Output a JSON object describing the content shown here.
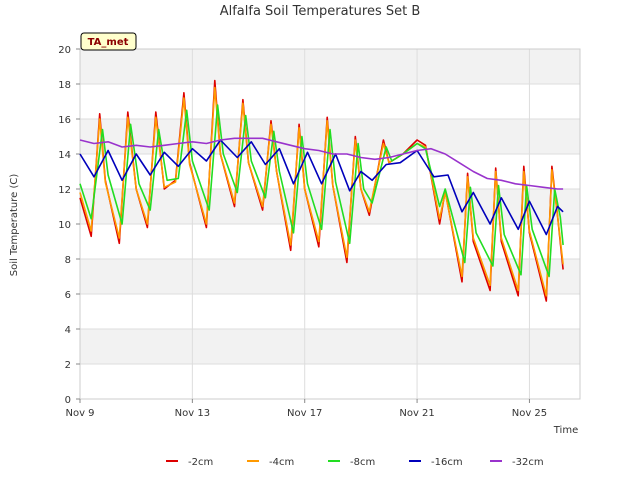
{
  "chart_data": {
    "type": "line",
    "title": "Alfalfa Soil Temperatures Set B",
    "xlabel": "Time",
    "ylabel": "Soil Temperature (C)",
    "badge": "TA_met",
    "xlim": [
      0,
      17.8
    ],
    "ylim": [
      0,
      20
    ],
    "yticks": [
      0,
      2,
      4,
      6,
      8,
      10,
      12,
      14,
      16,
      18,
      20
    ],
    "xticks": [
      {
        "x": 0,
        "label": "Nov 9"
      },
      {
        "x": 4,
        "label": "Nov 13"
      },
      {
        "x": 8,
        "label": "Nov 17"
      },
      {
        "x": 12,
        "label": "Nov 21"
      },
      {
        "x": 16,
        "label": "Nov 25"
      }
    ],
    "grid": true,
    "legend_position": "bottom",
    "series": [
      {
        "name": "-2cm",
        "color": "#dd0000",
        "points": [
          [
            0.0,
            11.5
          ],
          [
            0.4,
            9.3
          ],
          [
            0.7,
            16.3
          ],
          [
            0.9,
            12.5
          ],
          [
            1.4,
            8.9
          ],
          [
            1.7,
            16.4
          ],
          [
            2.0,
            12.0
          ],
          [
            2.4,
            9.8
          ],
          [
            2.7,
            16.4
          ],
          [
            3.0,
            12.0
          ],
          [
            3.4,
            12.5
          ],
          [
            3.7,
            17.5
          ],
          [
            3.9,
            13.5
          ],
          [
            4.5,
            9.8
          ],
          [
            4.8,
            18.2
          ],
          [
            5.0,
            14.0
          ],
          [
            5.5,
            11.0
          ],
          [
            5.8,
            17.1
          ],
          [
            6.0,
            13.5
          ],
          [
            6.5,
            10.8
          ],
          [
            6.8,
            15.9
          ],
          [
            7.0,
            13.0
          ],
          [
            7.5,
            8.5
          ],
          [
            7.8,
            15.7
          ],
          [
            8.0,
            12.0
          ],
          [
            8.5,
            8.7
          ],
          [
            8.8,
            16.1
          ],
          [
            9.0,
            12.2
          ],
          [
            9.5,
            7.8
          ],
          [
            9.8,
            15.0
          ],
          [
            10.0,
            12.0
          ],
          [
            10.3,
            10.5
          ],
          [
            10.8,
            14.8
          ],
          [
            11.0,
            13.5
          ],
          [
            11.5,
            14.0
          ],
          [
            12.0,
            14.8
          ],
          [
            12.3,
            14.5
          ],
          [
            12.8,
            10.0
          ],
          [
            13.0,
            11.9
          ],
          [
            13.6,
            6.7
          ],
          [
            13.8,
            12.9
          ],
          [
            14.0,
            9.0
          ],
          [
            14.6,
            6.2
          ],
          [
            14.8,
            13.2
          ],
          [
            15.0,
            9.0
          ],
          [
            15.6,
            5.9
          ],
          [
            15.8,
            13.3
          ],
          [
            16.0,
            9.5
          ],
          [
            16.6,
            5.6
          ],
          [
            16.8,
            13.3
          ],
          [
            17.0,
            10.5
          ],
          [
            17.2,
            7.4
          ]
        ]
      },
      {
        "name": "-4cm",
        "color": "#ff9900",
        "points": [
          [
            0.0,
            11.8
          ],
          [
            0.4,
            9.6
          ],
          [
            0.7,
            16.0
          ],
          [
            0.9,
            12.4
          ],
          [
            1.4,
            9.2
          ],
          [
            1.7,
            16.1
          ],
          [
            2.0,
            12.0
          ],
          [
            2.4,
            10.0
          ],
          [
            2.7,
            16.1
          ],
          [
            3.0,
            12.1
          ],
          [
            3.4,
            12.4
          ],
          [
            3.7,
            17.2
          ],
          [
            3.9,
            13.4
          ],
          [
            4.5,
            10.0
          ],
          [
            4.8,
            17.8
          ],
          [
            5.0,
            14.0
          ],
          [
            5.5,
            11.2
          ],
          [
            5.8,
            16.9
          ],
          [
            6.0,
            13.5
          ],
          [
            6.5,
            11.0
          ],
          [
            6.8,
            15.7
          ],
          [
            7.0,
            13.0
          ],
          [
            7.5,
            8.8
          ],
          [
            7.8,
            15.5
          ],
          [
            8.0,
            12.0
          ],
          [
            8.5,
            9.0
          ],
          [
            8.8,
            15.9
          ],
          [
            9.0,
            12.2
          ],
          [
            9.5,
            8.1
          ],
          [
            9.8,
            14.8
          ],
          [
            10.0,
            12.0
          ],
          [
            10.3,
            10.7
          ],
          [
            10.8,
            14.6
          ],
          [
            11.0,
            13.5
          ],
          [
            11.5,
            14.0
          ],
          [
            12.0,
            14.6
          ],
          [
            12.3,
            14.4
          ],
          [
            12.8,
            10.3
          ],
          [
            13.0,
            11.8
          ],
          [
            13.6,
            7.0
          ],
          [
            13.8,
            12.7
          ],
          [
            14.0,
            9.2
          ],
          [
            14.6,
            6.5
          ],
          [
            14.8,
            13.0
          ],
          [
            15.0,
            9.2
          ],
          [
            15.6,
            6.2
          ],
          [
            15.8,
            13.0
          ],
          [
            16.0,
            9.6
          ],
          [
            16.6,
            5.9
          ],
          [
            16.8,
            13.1
          ],
          [
            17.0,
            10.5
          ],
          [
            17.2,
            7.7
          ]
        ]
      },
      {
        "name": "-8cm",
        "color": "#22dd22",
        "points": [
          [
            0.0,
            12.3
          ],
          [
            0.4,
            10.3
          ],
          [
            0.8,
            15.4
          ],
          [
            1.0,
            12.8
          ],
          [
            1.5,
            10.0
          ],
          [
            1.8,
            15.7
          ],
          [
            2.1,
            12.3
          ],
          [
            2.5,
            10.8
          ],
          [
            2.8,
            15.4
          ],
          [
            3.1,
            12.5
          ],
          [
            3.5,
            12.6
          ],
          [
            3.8,
            16.5
          ],
          [
            4.0,
            13.6
          ],
          [
            4.6,
            10.8
          ],
          [
            4.9,
            16.8
          ],
          [
            5.1,
            14.0
          ],
          [
            5.6,
            11.8
          ],
          [
            5.9,
            16.2
          ],
          [
            6.1,
            13.6
          ],
          [
            6.6,
            11.5
          ],
          [
            6.9,
            15.3
          ],
          [
            7.1,
            13.0
          ],
          [
            7.6,
            9.5
          ],
          [
            7.9,
            15.0
          ],
          [
            8.1,
            12.3
          ],
          [
            8.6,
            9.7
          ],
          [
            8.9,
            15.4
          ],
          [
            9.1,
            12.4
          ],
          [
            9.6,
            8.9
          ],
          [
            9.9,
            14.6
          ],
          [
            10.1,
            12.0
          ],
          [
            10.4,
            11.2
          ],
          [
            10.9,
            14.4
          ],
          [
            11.1,
            13.6
          ],
          [
            11.5,
            14.0
          ],
          [
            12.0,
            14.6
          ],
          [
            12.3,
            14.3
          ],
          [
            12.8,
            11.0
          ],
          [
            13.0,
            12.0
          ],
          [
            13.7,
            7.8
          ],
          [
            13.9,
            12.1
          ],
          [
            14.1,
            9.5
          ],
          [
            14.7,
            7.6
          ],
          [
            14.9,
            12.2
          ],
          [
            15.1,
            9.4
          ],
          [
            15.7,
            7.1
          ],
          [
            15.9,
            12.2
          ],
          [
            16.1,
            9.7
          ],
          [
            16.7,
            7.0
          ],
          [
            16.9,
            12.0
          ],
          [
            17.1,
            10.4
          ],
          [
            17.2,
            8.8
          ]
        ]
      },
      {
        "name": "-16cm",
        "color": "#0000bb",
        "points": [
          [
            0.0,
            14.0
          ],
          [
            0.5,
            12.7
          ],
          [
            1.0,
            14.2
          ],
          [
            1.5,
            12.5
          ],
          [
            2.0,
            14.0
          ],
          [
            2.5,
            12.8
          ],
          [
            3.0,
            14.1
          ],
          [
            3.5,
            13.3
          ],
          [
            4.0,
            14.3
          ],
          [
            4.5,
            13.6
          ],
          [
            5.0,
            14.8
          ],
          [
            5.6,
            13.8
          ],
          [
            6.1,
            14.7
          ],
          [
            6.6,
            13.4
          ],
          [
            7.1,
            14.3
          ],
          [
            7.6,
            12.3
          ],
          [
            8.1,
            14.1
          ],
          [
            8.6,
            12.3
          ],
          [
            9.1,
            14.0
          ],
          [
            9.6,
            11.9
          ],
          [
            10.0,
            13.0
          ],
          [
            10.4,
            12.5
          ],
          [
            10.9,
            13.4
          ],
          [
            11.4,
            13.5
          ],
          [
            12.0,
            14.2
          ],
          [
            12.6,
            12.7
          ],
          [
            13.1,
            12.8
          ],
          [
            13.6,
            10.7
          ],
          [
            14.0,
            11.8
          ],
          [
            14.6,
            10.0
          ],
          [
            15.0,
            11.5
          ],
          [
            15.6,
            9.7
          ],
          [
            16.0,
            11.3
          ],
          [
            16.6,
            9.4
          ],
          [
            17.0,
            11.0
          ],
          [
            17.2,
            10.7
          ]
        ]
      },
      {
        "name": "-32cm",
        "color": "#9933cc",
        "points": [
          [
            0.0,
            14.8
          ],
          [
            0.5,
            14.6
          ],
          [
            1.0,
            14.7
          ],
          [
            1.5,
            14.4
          ],
          [
            2.0,
            14.5
          ],
          [
            2.5,
            14.4
          ],
          [
            3.0,
            14.5
          ],
          [
            3.5,
            14.6
          ],
          [
            4.0,
            14.7
          ],
          [
            4.5,
            14.6
          ],
          [
            5.0,
            14.8
          ],
          [
            5.5,
            14.9
          ],
          [
            6.0,
            14.9
          ],
          [
            6.5,
            14.9
          ],
          [
            7.0,
            14.7
          ],
          [
            7.5,
            14.5
          ],
          [
            8.0,
            14.3
          ],
          [
            8.5,
            14.2
          ],
          [
            9.0,
            14.0
          ],
          [
            9.5,
            14.0
          ],
          [
            10.0,
            13.8
          ],
          [
            10.5,
            13.7
          ],
          [
            11.0,
            13.8
          ],
          [
            11.5,
            14.0
          ],
          [
            12.0,
            14.2
          ],
          [
            12.5,
            14.3
          ],
          [
            13.0,
            14.0
          ],
          [
            13.5,
            13.5
          ],
          [
            14.0,
            13.0
          ],
          [
            14.5,
            12.6
          ],
          [
            15.0,
            12.5
          ],
          [
            15.5,
            12.3
          ],
          [
            16.0,
            12.2
          ],
          [
            16.5,
            12.1
          ],
          [
            17.0,
            12.0
          ],
          [
            17.2,
            12.0
          ]
        ]
      }
    ]
  }
}
